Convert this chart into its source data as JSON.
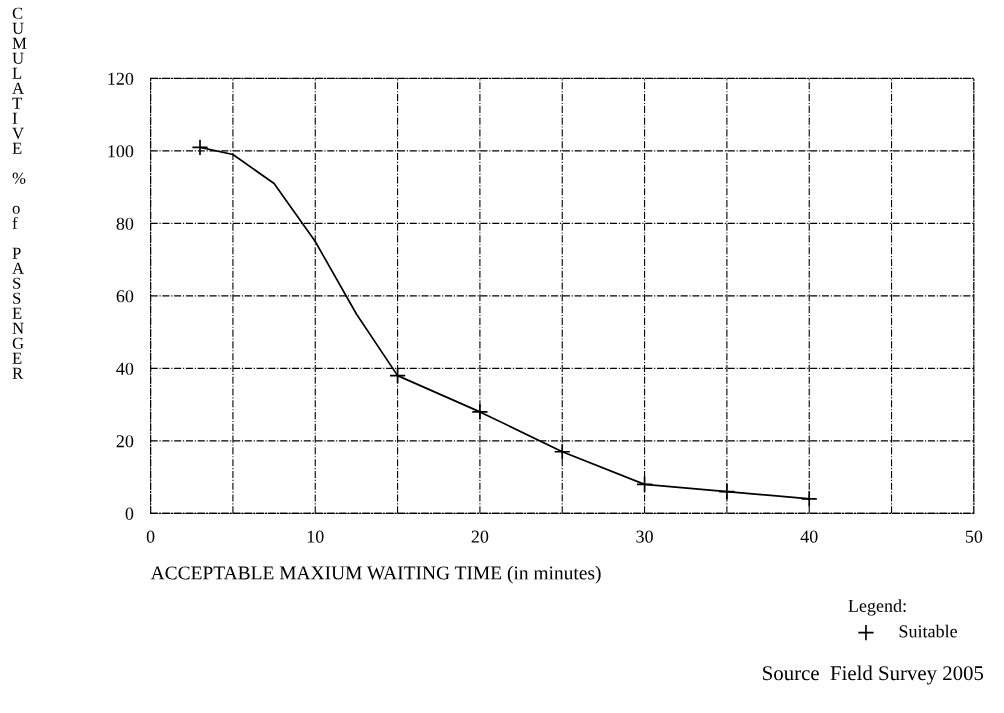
{
  "chart_data": {
    "type": "line",
    "xlabel": "ACCEPTABLE MAXIUM WAITING TIME (in minutes)",
    "ylabel": "CUMULATIVE % of PASSENGER",
    "legend_title": "Legend:",
    "annotations": [
      "Source  Field Survey 2005"
    ],
    "xlim": [
      0,
      50
    ],
    "ylim": [
      0,
      120
    ],
    "xticks": [
      0,
      10,
      20,
      30,
      40,
      50
    ],
    "yticks": [
      0,
      20,
      40,
      60,
      80,
      100,
      120
    ],
    "grid": true,
    "legend": "bottom right",
    "series": [
      {
        "color": "#000000",
        "x": [
          3,
          5,
          7.5,
          10,
          12.5,
          15,
          20,
          25,
          30,
          35,
          40
        ],
        "values": [
          101,
          99,
          91,
          75,
          55,
          38,
          28,
          17,
          8,
          6,
          4
        ]
      },
      {
        "type": "scatter",
        "name": "Suitable",
        "color": "#000000",
        "marker": "cross",
        "x": [
          3,
          15,
          20,
          25,
          30,
          35,
          40
        ],
        "values": [
          101,
          38,
          28,
          17,
          8,
          6,
          4
        ]
      }
    ]
  }
}
